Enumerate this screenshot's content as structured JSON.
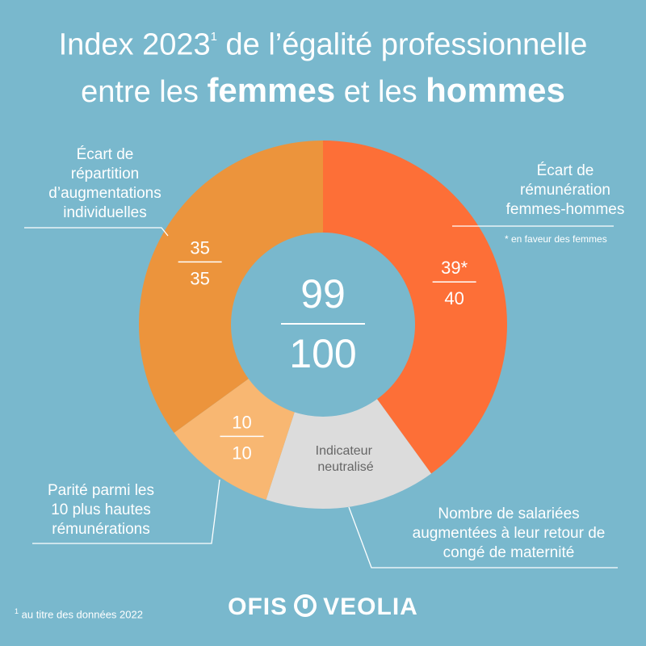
{
  "title": {
    "line1_main": "Index 2023",
    "line1_sup": "1",
    "line1_rest": " de l’égalité professionnelle",
    "line2_a": "entre les ",
    "line2_b": "femmes",
    "line2_c": " et les ",
    "line2_d": "hommes"
  },
  "colors": {
    "background": "#79b8cd",
    "remuneration": "#fd6f37",
    "augmentations": "#ec943c",
    "hautes_remunerations": "#f8b772",
    "neutralise": "#dcdcdc",
    "center": "#79b8cd"
  },
  "labels": {
    "remuneration": [
      "Écart de",
      "rémunération",
      "femmes-hommes"
    ],
    "remuneration_note": "* en faveur des femmes",
    "augmentations": [
      "Écart de",
      "répartition",
      "d’augmentations",
      "individuelles"
    ],
    "hautes": [
      "Parité parmi les",
      "10 plus hautes",
      "rémunérations"
    ],
    "maternite": [
      "Nombre de salariées",
      "augmentées à leur retour de",
      "congé de maternité"
    ]
  },
  "footnote": {
    "sup": "1",
    "text": " au titre des données 2022"
  },
  "logo": {
    "left": "OFIS",
    "right": "VEOLIA"
  },
  "chart_data": {
    "type": "pie",
    "title": "Index 2023 de l’égalité professionnelle entre les femmes et les hommes",
    "total": {
      "score": "99",
      "max": "100"
    },
    "slices": [
      {
        "name": "Écart de rémunération femmes-hommes",
        "score": "39*",
        "max": "40",
        "value": 40,
        "color": "#fd6f37"
      },
      {
        "name": "Nombre de salariées augmentées à leur retour de congé de maternité",
        "label": "Indicateur neutralisé",
        "value": 15,
        "color": "#dcdcdc"
      },
      {
        "name": "Parité parmi les 10 plus hautes rémunérations",
        "score": "10",
        "max": "10",
        "value": 10,
        "color": "#f8b772"
      },
      {
        "name": "Écart de répartition d’augmentations individuelles",
        "score": "35",
        "max": "35",
        "value": 35,
        "color": "#ec943c"
      }
    ]
  }
}
